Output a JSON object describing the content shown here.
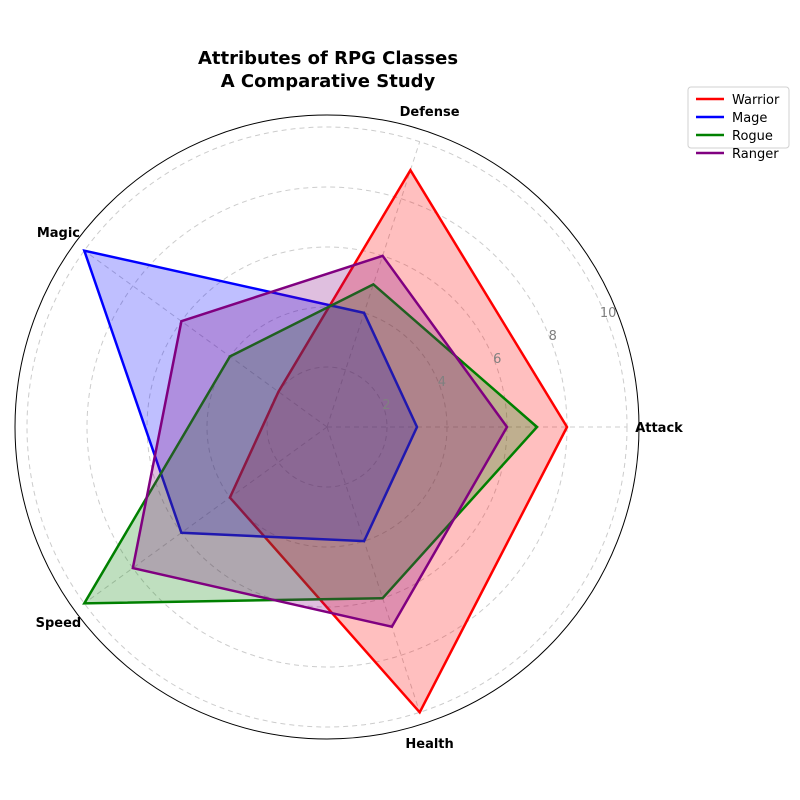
{
  "chart_data": {
    "type": "radar",
    "title": [
      "Attributes of RPG Classes",
      "A Comparative Study"
    ],
    "categories": [
      "Attack",
      "Defense",
      "Magic",
      "Speed",
      "Health"
    ],
    "rlim": [
      0,
      10
    ],
    "rticks": [
      2,
      4,
      6,
      8,
      10
    ],
    "rtick_labels": [
      "2",
      "4",
      "6",
      "8",
      "10"
    ],
    "grid": true,
    "legend_placement": "top-right",
    "series": [
      {
        "name": "Warrior",
        "values": [
          8,
          9,
          2,
          4,
          10
        ],
        "color": "#ff0000",
        "fill": "#ff0000"
      },
      {
        "name": "Mage",
        "values": [
          3,
          4,
          10,
          6,
          4
        ],
        "color": "#0000ff",
        "fill": "#0000ff"
      },
      {
        "name": "Rogue",
        "values": [
          7,
          5,
          4,
          10,
          6
        ],
        "color": "#008000",
        "fill": "#008000"
      },
      {
        "name": "Ranger",
        "values": [
          6,
          6,
          6,
          8,
          7
        ],
        "color": "#800080",
        "fill": "#800080"
      }
    ]
  }
}
